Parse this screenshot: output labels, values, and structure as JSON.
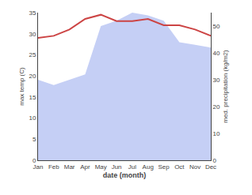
{
  "chart_data": {
    "type": "line",
    "categories": [
      "Jan",
      "Feb",
      "Mar",
      "Apr",
      "May",
      "Jun",
      "Jul",
      "Aug",
      "Sep",
      "Oct",
      "Nov",
      "Dec"
    ],
    "xlabel": "date (month)",
    "ylabel": "max temp (C)",
    "y2label": "med. precipitation (kg/m2)",
    "series": [
      {
        "type": "area",
        "axis": "y2",
        "color": "#c5cff5",
        "values": [
          30,
          28,
          30,
          32,
          50,
          52,
          55,
          54,
          52,
          44,
          43,
          42
        ]
      },
      {
        "type": "line",
        "color": "#cc4444",
        "values": [
          29,
          29.5,
          31,
          33.5,
          34.5,
          33,
          33,
          33.5,
          32,
          32,
          31,
          29.5
        ]
      }
    ],
    "ylim": [
      0,
      35
    ],
    "yticks": [
      0,
      5,
      10,
      15,
      20,
      25,
      30,
      35
    ],
    "y2lim": [
      0,
      55
    ],
    "y2ticks": [
      0,
      10,
      20,
      30,
      40,
      50
    ],
    "grid": false
  }
}
